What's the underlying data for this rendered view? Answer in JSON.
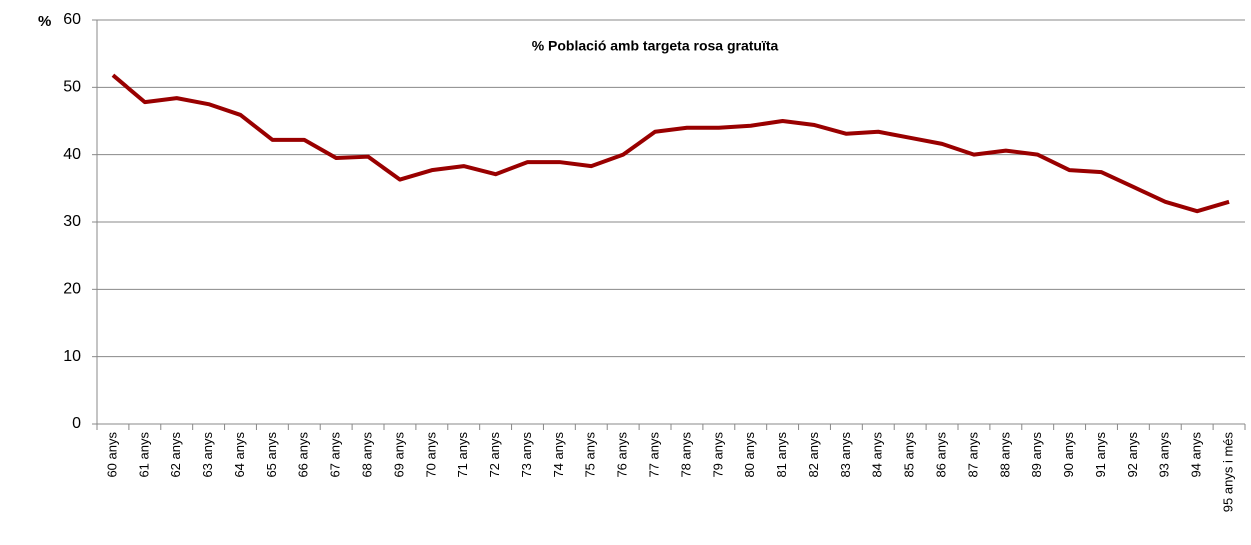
{
  "chart_data": {
    "type": "line",
    "title": "% Població  amb targeta rosa  gratuïta",
    "y_label": "%",
    "categories": [
      "60 anys",
      "61 anys",
      "62 anys",
      "63 anys",
      "64 anys",
      "65 anys",
      "66 anys",
      "67 anys",
      "68 anys",
      "69 anys",
      "70 anys",
      "71 anys",
      "72 anys",
      "73 anys",
      "74 anys",
      "75 anys",
      "76 anys",
      "77 anys",
      "78 anys",
      "79 anys",
      "80 anys",
      "81 anys",
      "82 anys",
      "83 anys",
      "84 anys",
      "85 anys",
      "86 anys",
      "87 anys",
      "88 anys",
      "89 anys",
      "90 anys",
      "91 anys",
      "92 anys",
      "93 anys",
      "94 anys",
      "95 anys i més"
    ],
    "values": [
      51.8,
      47.8,
      48.4,
      47.5,
      45.9,
      42.2,
      42.2,
      39.5,
      39.7,
      36.3,
      37.7,
      38.3,
      37.1,
      38.9,
      38.9,
      38.3,
      40.0,
      43.4,
      44.0,
      44.0,
      44.3,
      45.0,
      44.4,
      43.1,
      43.4,
      42.5,
      41.6,
      40.0,
      40.6,
      40.0,
      37.7,
      37.4,
      35.2,
      33.0,
      31.6,
      33.0
    ],
    "color": "#990000",
    "ylim": [
      0,
      60
    ],
    "yticks": [
      0,
      10,
      20,
      30,
      40,
      50,
      60
    ],
    "grid": true
  }
}
